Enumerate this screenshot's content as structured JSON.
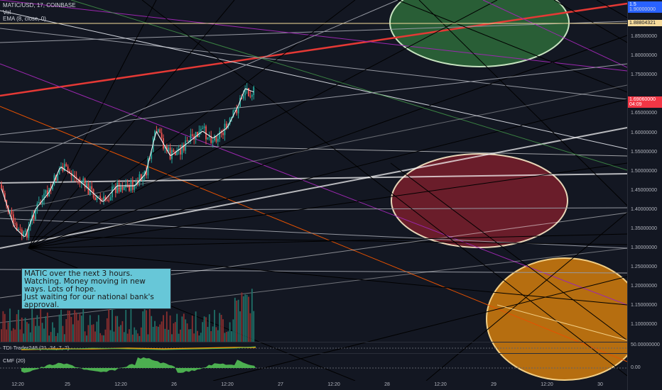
{
  "header": {
    "symbol": "MATIC/USD, 17, COINBASE",
    "vol_label": "Vol",
    "ema_label": "EMA (8, close, 0)"
  },
  "note": {
    "text": "MATIC over the next 3 hours. Watching. Money moving in new ways. Lots of hope.\nJust waiting for our national bank's approval."
  },
  "price_axis": {
    "ticks": [
      "1.90000000",
      "1.85000000",
      "1.80000000",
      "1.75000000",
      "1.70000000",
      "1.65000000",
      "1.60000000",
      "1.55000000",
      "1.50000000",
      "1.45000000",
      "1.40000000",
      "1.35000000",
      "1.30000000",
      "1.25000000",
      "1.20000000",
      "1.15000000",
      "1.10000000"
    ],
    "top_badge": "1.90000000",
    "top_badge_label": "1.5",
    "ema_tag": "1.88804321",
    "current_price": "1.69060000",
    "countdown": "04:09"
  },
  "time_axis": {
    "ticks": [
      "12:20",
      "25",
      "12:20",
      "26",
      "12:20",
      "27",
      "12:20",
      "28",
      "12:20",
      "29",
      "12:20",
      "30"
    ]
  },
  "tdi": {
    "label": "TDI-Trader248 (21, 34, 7, 2)",
    "scale": "50.00000000"
  },
  "cmf": {
    "label": "CMF (20)",
    "scale": "0.00"
  },
  "colors": {
    "background": "#131722",
    "up_candle": "#26a69a",
    "down_candle": "#ef5350",
    "note_bg": "#67c7d8",
    "price_tag": "#f23645",
    "ema_tag": "#f7dc9c"
  }
}
